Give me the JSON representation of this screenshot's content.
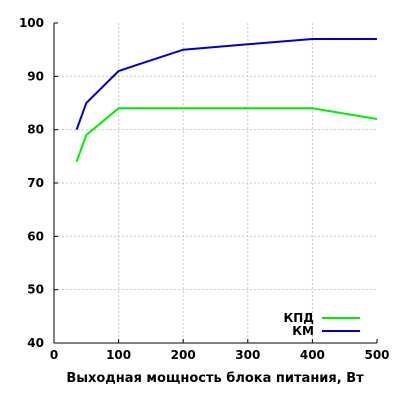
{
  "chart_data": {
    "type": "line",
    "title": "",
    "xlabel": "Выходная мощность блока питания, Вт",
    "ylabel": "",
    "xlim": [
      0,
      500
    ],
    "ylim": [
      40,
      100
    ],
    "x_ticks": [
      0,
      100,
      200,
      300,
      400,
      500
    ],
    "y_ticks": [
      40,
      50,
      60,
      70,
      80,
      90,
      100
    ],
    "grid": true,
    "legend_position": "bottom-right",
    "series": [
      {
        "name": "КПД",
        "color": "#00ee00",
        "x": [
          35,
          50,
          100,
          200,
          300,
          400,
          500
        ],
        "y": [
          74,
          79,
          84,
          84,
          84,
          84,
          82
        ]
      },
      {
        "name": "КМ",
        "color": "#0000cc",
        "x": [
          35,
          50,
          100,
          200,
          300,
          400,
          500
        ],
        "y": [
          80,
          85,
          91,
          95,
          96,
          97,
          97
        ]
      }
    ]
  }
}
